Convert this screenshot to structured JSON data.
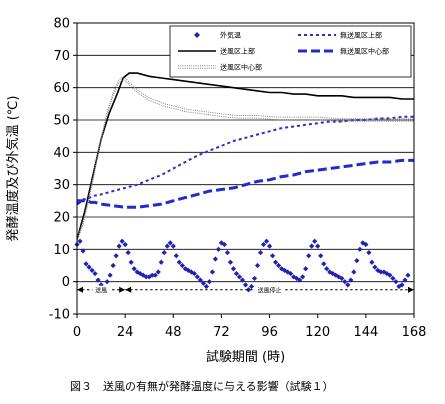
{
  "chart_data": {
    "type": "line",
    "title": "",
    "xlabel": "試験期間 (時)",
    "ylabel": "発酵温度及び外気温 (℃)",
    "xlim": [
      0,
      168
    ],
    "ylim": [
      -10,
      80
    ],
    "x_ticks": [
      0,
      24,
      48,
      72,
      96,
      120,
      144,
      168
    ],
    "y_ticks": [
      -10,
      0,
      10,
      20,
      30,
      40,
      50,
      60,
      70,
      80
    ],
    "grid": "horizontal",
    "legend_position": "top-right",
    "series": [
      {
        "name": "外気温",
        "style": "diamond-markers",
        "color": "#1f23b3",
        "points": [
          [
            0,
            11.5
          ],
          [
            1.5,
            12.5
          ],
          [
            3,
            9.5
          ],
          [
            4.5,
            5.5
          ],
          [
            6,
            4.5
          ],
          [
            7.5,
            3.5
          ],
          [
            9,
            2.5
          ],
          [
            10.5,
            0.5
          ],
          [
            12,
            -1
          ],
          [
            13.5,
            -2
          ],
          [
            15,
            0
          ],
          [
            16.5,
            2
          ],
          [
            18,
            5
          ],
          [
            19.5,
            8
          ],
          [
            21,
            11
          ],
          [
            22.5,
            12.5
          ],
          [
            24,
            11.5
          ],
          [
            25.5,
            9
          ],
          [
            27,
            6
          ],
          [
            28.5,
            4
          ],
          [
            30,
            3
          ],
          [
            31.5,
            2.5
          ],
          [
            33,
            2
          ],
          [
            34.5,
            1.5
          ],
          [
            36,
            1.5
          ],
          [
            37.5,
            2
          ],
          [
            39,
            2
          ],
          [
            40.5,
            3
          ],
          [
            42,
            6
          ],
          [
            43.5,
            9
          ],
          [
            45,
            11
          ],
          [
            46.5,
            12
          ],
          [
            48,
            11
          ],
          [
            49.5,
            8
          ],
          [
            51,
            6
          ],
          [
            52.5,
            5
          ],
          [
            54,
            4
          ],
          [
            55.5,
            3.5
          ],
          [
            57,
            3
          ],
          [
            58.5,
            2.5
          ],
          [
            60,
            1.5
          ],
          [
            61.5,
            0.5
          ],
          [
            63,
            -0.5
          ],
          [
            64.5,
            -1.5
          ],
          [
            66,
            0
          ],
          [
            67.5,
            3
          ],
          [
            69,
            7
          ],
          [
            70.5,
            10
          ],
          [
            72,
            12
          ],
          [
            73.5,
            11.5
          ],
          [
            75,
            9
          ],
          [
            76.5,
            6
          ],
          [
            78,
            4
          ],
          [
            79.5,
            2.5
          ],
          [
            81,
            1.5
          ],
          [
            82.5,
            0.5
          ],
          [
            84,
            -1
          ],
          [
            85.5,
            -2.5
          ],
          [
            87,
            -1.5
          ],
          [
            88.5,
            1
          ],
          [
            90,
            5
          ],
          [
            91.5,
            9
          ],
          [
            93,
            11.5
          ],
          [
            94.5,
            12.5
          ],
          [
            96,
            11
          ],
          [
            97.5,
            8
          ],
          [
            99,
            6
          ],
          [
            100.5,
            5
          ],
          [
            102,
            4
          ],
          [
            103.5,
            3.5
          ],
          [
            105,
            3
          ],
          [
            106.5,
            2.5
          ],
          [
            108,
            1.5
          ],
          [
            109.5,
            1
          ],
          [
            111,
            0.5
          ],
          [
            112.5,
            1.5
          ],
          [
            114,
            4
          ],
          [
            115.5,
            8
          ],
          [
            117,
            11
          ],
          [
            118.5,
            12.5
          ],
          [
            120,
            11
          ],
          [
            121.5,
            8
          ],
          [
            123,
            5.5
          ],
          [
            124.5,
            4
          ],
          [
            126,
            3
          ],
          [
            127.5,
            2.5
          ],
          [
            129,
            2
          ],
          [
            130.5,
            1.5
          ],
          [
            132,
            1
          ],
          [
            133.5,
            0
          ],
          [
            135,
            -1
          ],
          [
            136.5,
            0.5
          ],
          [
            138,
            3
          ],
          [
            139.5,
            6.5
          ],
          [
            141,
            10
          ],
          [
            142.5,
            12
          ],
          [
            144,
            11.5
          ],
          [
            145.5,
            9
          ],
          [
            147,
            6
          ],
          [
            148.5,
            4.5
          ],
          [
            150,
            3.5
          ],
          [
            151.5,
            3
          ],
          [
            153,
            3
          ],
          [
            154.5,
            2.5
          ],
          [
            156,
            2
          ],
          [
            157.5,
            1
          ],
          [
            159,
            0
          ],
          [
            160.5,
            -1.5
          ],
          [
            162,
            -1
          ],
          [
            163.5,
            0.5
          ],
          [
            165,
            2
          ]
        ]
      },
      {
        "name": "無送風区上部",
        "style": "short-dash",
        "color": "#2a2fc4",
        "points": [
          [
            0,
            25
          ],
          [
            2,
            25.5
          ],
          [
            5,
            25.5
          ],
          [
            8,
            26.5
          ],
          [
            12,
            27
          ],
          [
            18,
            28
          ],
          [
            24,
            29
          ],
          [
            30,
            30
          ],
          [
            36,
            31.5
          ],
          [
            42,
            33
          ],
          [
            48,
            35
          ],
          [
            54,
            37
          ],
          [
            60,
            39
          ],
          [
            66,
            40.5
          ],
          [
            72,
            42
          ],
          [
            78,
            43.5
          ],
          [
            84,
            44.5
          ],
          [
            90,
            45.5
          ],
          [
            96,
            46.5
          ],
          [
            102,
            47.5
          ],
          [
            108,
            48
          ],
          [
            114,
            48.5
          ],
          [
            120,
            49
          ],
          [
            126,
            49.5
          ],
          [
            132,
            49.5
          ],
          [
            138,
            50
          ],
          [
            144,
            50
          ],
          [
            150,
            50.5
          ],
          [
            156,
            50.5
          ],
          [
            162,
            51
          ],
          [
            168,
            51
          ]
        ]
      },
      {
        "name": "送風区上部",
        "style": "solid",
        "color": "#000000",
        "points": [
          [
            0,
            13
          ],
          [
            4,
            22
          ],
          [
            8,
            33
          ],
          [
            12,
            44
          ],
          [
            16,
            52
          ],
          [
            20,
            58
          ],
          [
            23,
            63
          ],
          [
            26,
            64.5
          ],
          [
            30,
            64.5
          ],
          [
            36,
            63.5
          ],
          [
            42,
            63
          ],
          [
            48,
            62.5
          ],
          [
            54,
            62
          ],
          [
            60,
            61.5
          ],
          [
            66,
            61
          ],
          [
            72,
            60.5
          ],
          [
            78,
            60
          ],
          [
            84,
            59.5
          ],
          [
            90,
            59
          ],
          [
            96,
            58.5
          ],
          [
            102,
            58.5
          ],
          [
            108,
            58
          ],
          [
            114,
            58
          ],
          [
            120,
            57.5
          ],
          [
            126,
            57.5
          ],
          [
            132,
            57.5
          ],
          [
            138,
            57
          ],
          [
            144,
            57
          ],
          [
            150,
            57
          ],
          [
            156,
            57
          ],
          [
            162,
            56.5
          ],
          [
            168,
            56.5
          ]
        ]
      },
      {
        "name": "送風区中心部",
        "style": "dotted-double",
        "color": "#808080",
        "points": [
          [
            0,
            13
          ],
          [
            3,
            18
          ],
          [
            6,
            26
          ],
          [
            9,
            35
          ],
          [
            12,
            44
          ],
          [
            15,
            52
          ],
          [
            18,
            58
          ],
          [
            21,
            62
          ],
          [
            23,
            63
          ],
          [
            25,
            62
          ],
          [
            28,
            60
          ],
          [
            32,
            58
          ],
          [
            36,
            56.5
          ],
          [
            40,
            55.5
          ],
          [
            44,
            54.5
          ],
          [
            48,
            54
          ],
          [
            54,
            53
          ],
          [
            60,
            52.5
          ],
          [
            66,
            52
          ],
          [
            72,
            51.5
          ],
          [
            80,
            51
          ],
          [
            90,
            51
          ],
          [
            100,
            50.5
          ],
          [
            110,
            50.5
          ],
          [
            120,
            50.5
          ],
          [
            130,
            50
          ],
          [
            140,
            50
          ],
          [
            150,
            50
          ],
          [
            160,
            50
          ],
          [
            168,
            50
          ]
        ]
      },
      {
        "name": "無送風区中心部",
        "style": "long-dash",
        "color": "#1f2bd0",
        "points": [
          [
            0,
            24
          ],
          [
            2,
            25
          ],
          [
            5,
            25
          ],
          [
            7,
            24.5
          ],
          [
            9,
            24.5
          ],
          [
            12,
            24
          ],
          [
            18,
            23.5
          ],
          [
            24,
            23
          ],
          [
            30,
            23
          ],
          [
            36,
            23.5
          ],
          [
            42,
            24
          ],
          [
            48,
            25
          ],
          [
            54,
            26
          ],
          [
            60,
            27
          ],
          [
            66,
            28
          ],
          [
            72,
            28.5
          ],
          [
            78,
            29
          ],
          [
            84,
            30
          ],
          [
            90,
            31
          ],
          [
            96,
            31.5
          ],
          [
            102,
            32.5
          ],
          [
            108,
            33
          ],
          [
            114,
            34
          ],
          [
            120,
            34.5
          ],
          [
            126,
            35
          ],
          [
            132,
            35.5
          ],
          [
            138,
            36
          ],
          [
            144,
            36.5
          ],
          [
            150,
            37
          ],
          [
            156,
            37
          ],
          [
            162,
            37.5
          ],
          [
            168,
            37.5
          ]
        ]
      }
    ],
    "annotations": [
      {
        "label": "送風",
        "from": 0,
        "to": 24,
        "y": -2.5
      },
      {
        "label": "送風停止",
        "from": 24,
        "to": 168,
        "y": -2.5
      }
    ],
    "caption": "図３　送風の有無が発酵温度に与える影響（試験１）"
  }
}
